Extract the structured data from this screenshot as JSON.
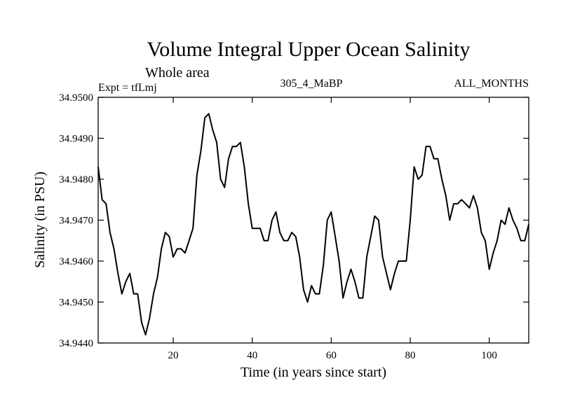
{
  "chart_data": {
    "type": "line",
    "title": "Volume Integral Upper Ocean Salinity",
    "subtitle": "Whole area",
    "header_left": "Expt = tfLmj",
    "header_center": "305_4_MaBP",
    "header_right": "ALL_MONTHS",
    "xlabel": "Time (in years since start)",
    "ylabel": "Salinity (in PSU)",
    "xlim": [
      1,
      110
    ],
    "ylim": [
      34.944,
      34.95
    ],
    "xticks": [
      20,
      40,
      60,
      80,
      100
    ],
    "yticks": [
      34.944,
      34.945,
      34.946,
      34.947,
      34.948,
      34.949,
      34.95
    ],
    "yticklabels": [
      "34.9440",
      "34.9450",
      "34.9460",
      "34.9470",
      "34.9480",
      "34.9490",
      "34.9500"
    ],
    "grid": false,
    "series": [
      {
        "name": "salinity",
        "color": "#000000",
        "x": [
          1,
          2,
          3,
          4,
          5,
          6,
          7,
          8,
          9,
          10,
          11,
          12,
          13,
          14,
          15,
          16,
          17,
          18,
          19,
          20,
          21,
          22,
          23,
          24,
          25,
          26,
          27,
          28,
          29,
          30,
          31,
          32,
          33,
          34,
          35,
          36,
          37,
          38,
          39,
          40,
          41,
          42,
          43,
          44,
          45,
          46,
          47,
          48,
          49,
          50,
          51,
          52,
          53,
          54,
          55,
          56,
          57,
          58,
          59,
          60,
          61,
          62,
          63,
          64,
          65,
          66,
          67,
          68,
          69,
          70,
          71,
          72,
          73,
          74,
          75,
          76,
          77,
          78,
          79,
          80,
          81,
          82,
          83,
          84,
          85,
          86,
          87,
          88,
          89,
          90,
          91,
          92,
          93,
          94,
          95,
          96,
          97,
          98,
          99,
          100,
          101,
          102,
          103,
          104,
          105,
          106,
          107,
          108,
          109,
          110
        ],
        "values": [
          34.9483,
          34.9475,
          34.9474,
          34.9467,
          34.9463,
          34.9457,
          34.9452,
          34.9455,
          34.9457,
          34.9452,
          34.9452,
          34.9445,
          34.9442,
          34.9446,
          34.9452,
          34.9456,
          34.9463,
          34.9467,
          34.9466,
          34.9461,
          34.9463,
          34.9463,
          34.9462,
          34.9465,
          34.9468,
          34.9481,
          34.9487,
          34.9495,
          34.9496,
          34.9492,
          34.9489,
          34.948,
          34.9478,
          34.9485,
          34.9488,
          34.9488,
          34.9489,
          34.9483,
          34.9474,
          34.9468,
          34.9468,
          34.9468,
          34.9465,
          34.9465,
          34.947,
          34.9472,
          34.9467,
          34.9465,
          34.9465,
          34.9467,
          34.9466,
          34.9461,
          34.9453,
          34.945,
          34.9454,
          34.9452,
          34.9452,
          34.9459,
          34.947,
          34.9472,
          34.9466,
          34.946,
          34.9451,
          34.9455,
          34.9458,
          34.9455,
          34.9451,
          34.9451,
          34.9461,
          34.9466,
          34.9471,
          34.947,
          34.9461,
          34.9457,
          34.9453,
          34.9457,
          34.946,
          34.946,
          34.946,
          34.947,
          34.9483,
          34.948,
          34.9481,
          34.9488,
          34.9488,
          34.9485,
          34.9485,
          34.948,
          34.9476,
          34.947,
          34.9474,
          34.9474,
          34.9475,
          34.9474,
          34.9473,
          34.9476,
          34.9473,
          34.9467,
          34.9465,
          34.9458,
          34.9462,
          34.9465,
          34.947,
          34.9469,
          34.9473,
          34.947,
          34.9468,
          34.9465,
          34.9465,
          34.9469
        ]
      }
    ]
  }
}
